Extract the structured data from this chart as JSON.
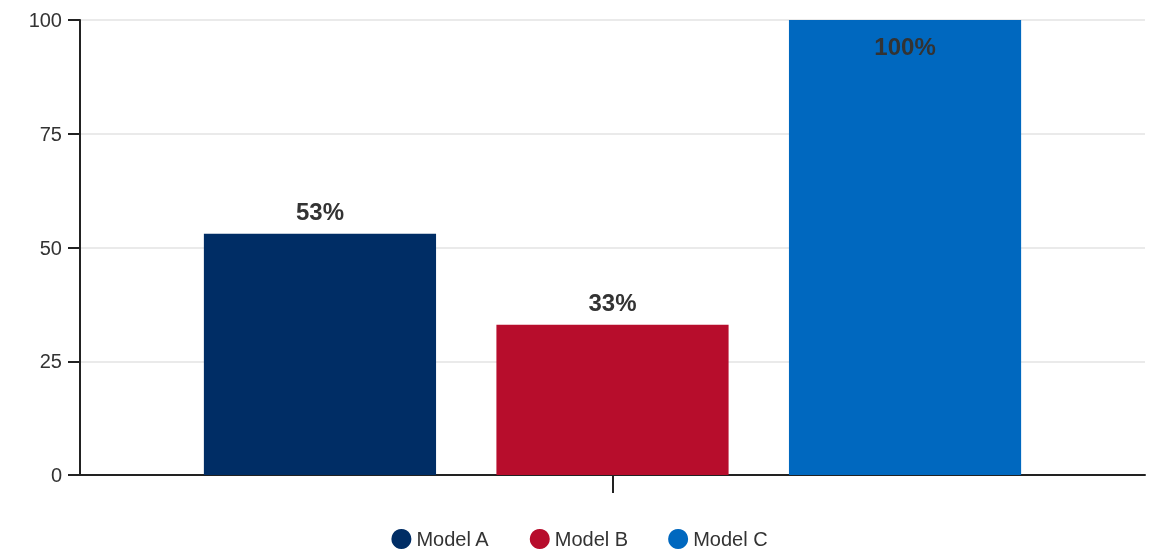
{
  "chart_data": {
    "type": "bar",
    "categories": [
      null
    ],
    "series": [
      {
        "name": "Model A",
        "color": "#002d65",
        "values": [
          53
        ],
        "value_labels": [
          "53%"
        ]
      },
      {
        "name": "Model B",
        "color": "#b70d2c",
        "values": [
          33
        ],
        "value_labels": [
          "33%"
        ]
      },
      {
        "name": "Model C",
        "color": "#0068bf",
        "values": [
          100
        ],
        "value_labels": [
          "100%"
        ]
      }
    ],
    "ylim": [
      0,
      100
    ],
    "yticks": [
      0,
      25,
      50,
      75,
      100
    ],
    "grid": "y",
    "legend": "bottom"
  }
}
